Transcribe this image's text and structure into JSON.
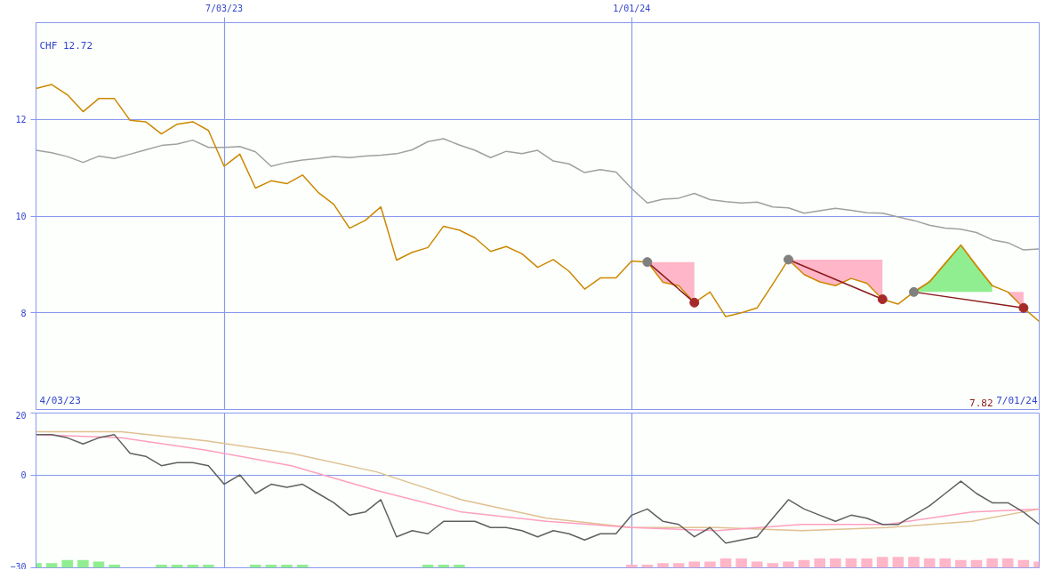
{
  "chart_data": [
    {
      "type": "line",
      "x": [
        "2023-04-10",
        "2023-04-17",
        "2023-04-24",
        "2023-05-01",
        "2023-05-08",
        "2023-05-15",
        "2023-05-22",
        "2023-05-29",
        "2023-06-05",
        "2023-06-12",
        "2023-06-19",
        "2023-06-26",
        "2023-07-03",
        "2023-07-10",
        "2023-07-17",
        "2023-07-24",
        "2023-07-31",
        "2023-08-07",
        "2023-08-14",
        "2023-08-21",
        "2023-08-28",
        "2023-09-04",
        "2023-09-11",
        "2023-09-18",
        "2023-09-25",
        "2023-10-02",
        "2023-10-09",
        "2023-10-16",
        "2023-10-23",
        "2023-10-30",
        "2023-11-06",
        "2023-11-13",
        "2023-11-20",
        "2023-11-27",
        "2023-12-04",
        "2023-12-11",
        "2023-12-18",
        "2023-12-25",
        "2024-01-01",
        "2024-01-08",
        "2024-01-15",
        "2024-01-22",
        "2024-01-29",
        "2024-02-05",
        "2024-02-12",
        "2024-02-19",
        "2024-02-26",
        "2024-03-04",
        "2024-03-11",
        "2024-03-18",
        "2024-03-25",
        "2024-04-01",
        "2024-04-08",
        "2024-04-15",
        "2024-04-22",
        "2024-04-29",
        "2024-05-06",
        "2024-05-13",
        "2024-05-20",
        "2024-05-27",
        "2024-06-03",
        "2024-06-10",
        "2024-06-17",
        "2024-06-24",
        "2024-07-01"
      ],
      "xlim": [
        "2023-04-10",
        "2024-07-01"
      ],
      "xticks": [
        {
          "value": "2023-07-03",
          "label": "7/03/23"
        },
        {
          "value": "2024-01-01",
          "label": "1/01/24"
        }
      ],
      "ylim": [
        6,
        14
      ],
      "yticks": [
        8,
        10,
        12
      ],
      "grid": true,
      "annotations": [
        "CHF 12.72",
        "4/03/23",
        "7.82",
        "7/01/24"
      ],
      "series": [
        {
          "color": "#a0a0a0",
          "values": [
            11.36,
            11.31,
            11.23,
            11.11,
            11.24,
            11.19,
            11.28,
            11.37,
            11.46,
            11.49,
            11.57,
            11.42,
            11.42,
            11.44,
            11.33,
            11.03,
            11.11,
            11.16,
            11.19,
            11.23,
            11.21,
            11.24,
            11.26,
            11.29,
            11.37,
            11.54,
            11.6,
            11.47,
            11.36,
            11.21,
            11.34,
            11.29,
            11.36,
            11.14,
            11.08,
            10.9,
            10.96,
            10.91,
            10.57,
            10.27,
            10.35,
            10.37,
            10.47,
            10.34,
            10.3,
            10.27,
            10.29,
            10.19,
            10.17,
            10.06,
            10.11,
            10.16,
            10.12,
            10.07,
            10.06,
            9.98,
            9.91,
            9.81,
            9.75,
            9.73,
            9.66,
            9.51,
            9.45,
            9.3,
            9.32
          ]
        },
        {
          "color": "#cc8800",
          "values": [
            12.64,
            12.72,
            12.51,
            12.16,
            12.43,
            12.43,
            11.98,
            11.95,
            11.7,
            11.9,
            11.95,
            11.77,
            11.03,
            11.28,
            10.58,
            10.73,
            10.67,
            10.85,
            10.49,
            10.24,
            9.75,
            9.91,
            10.19,
            9.09,
            9.25,
            9.35,
            9.79,
            9.71,
            9.55,
            9.27,
            9.37,
            9.22,
            8.94,
            9.1,
            8.86,
            8.49,
            8.72,
            8.72,
            9.07,
            9.05,
            8.63,
            8.56,
            8.21,
            8.43,
            7.92,
            8.0,
            8.1,
            8.59,
            9.1,
            8.79,
            8.64,
            8.56,
            8.71,
            8.61,
            8.28,
            8.18,
            8.43,
            8.64,
            9.02,
            9.4,
            8.97,
            8.56,
            8.43,
            8.1,
            7.82
          ],
          "lower": [
            null,
            null,
            null,
            null,
            null,
            null,
            null,
            null,
            null,
            null,
            null,
            null,
            null,
            null,
            null,
            null,
            null,
            null,
            null,
            null,
            null,
            null,
            null,
            null,
            null,
            null,
            null,
            null,
            null,
            null,
            null,
            null,
            null,
            null,
            null,
            null,
            null,
            null,
            null,
            9.05,
            8.63,
            8.56,
            8.21,
            null,
            null,
            null,
            null,
            null,
            9.1,
            8.79,
            8.64,
            8.56,
            8.71,
            8.61,
            8.28,
            null,
            null,
            null,
            null,
            null,
            null,
            null,
            8.43,
            8.1,
            null
          ],
          "upper": [
            null,
            null,
            null,
            null,
            null,
            null,
            null,
            null,
            null,
            null,
            null,
            null,
            null,
            null,
            null,
            null,
            null,
            null,
            null,
            null,
            null,
            null,
            null,
            null,
            null,
            null,
            null,
            null,
            null,
            null,
            null,
            null,
            null,
            null,
            null,
            null,
            null,
            null,
            null,
            9.05,
            9.05,
            9.05,
            9.05,
            null,
            null,
            null,
            null,
            null,
            9.1,
            9.1,
            9.1,
            9.1,
            9.1,
            9.1,
            9.1,
            null,
            null,
            null,
            null,
            null,
            null,
            null,
            8.43,
            8.43,
            null
          ],
          "colors": [
            null,
            null,
            null,
            null,
            null,
            null,
            null,
            null,
            null,
            null,
            null,
            null,
            null,
            null,
            null,
            null,
            null,
            null,
            null,
            null,
            null,
            null,
            null,
            null,
            null,
            null,
            null,
            null,
            null,
            null,
            null,
            null,
            null,
            null,
            null,
            null,
            null,
            null,
            null,
            "#ffb6c8",
            "#ffb6c8",
            "#ffb6c8",
            "#ffb6c8",
            null,
            null,
            null,
            null,
            null,
            "#ffb6c8",
            "#ffb6c8",
            "#ffb6c8",
            "#ffb6c8",
            "#ffb6c8",
            "#ffb6c8",
            "#ffb6c8",
            null,
            null,
            null,
            null,
            null,
            null,
            null,
            "#ffb6c8",
            "#ffb6c8",
            null
          ]
        },
        {
          "color": "#cc8800",
          "x": [
            "2024-05-06",
            "2024-05-13",
            "2024-05-20",
            "2024-05-27",
            "2024-06-03",
            "2024-06-10"
          ],
          "values": [
            8.43,
            8.64,
            9.02,
            9.4,
            8.97,
            8.56
          ],
          "lower": [
            8.43,
            8.43,
            8.43,
            8.43,
            8.43,
            8.43
          ],
          "upper": [
            8.43,
            8.64,
            9.02,
            9.4,
            8.97,
            8.56
          ],
          "colors": [
            "#90ee90",
            "#90ee90",
            "#90ee90",
            "#90ee90",
            "#90ee90",
            "#90ee90"
          ]
        },
        {
          "color": "#8b1a1a",
          "x": [
            "2024-01-08",
            "2024-01-29"
          ],
          "values": [
            9.05,
            8.21
          ]
        },
        {
          "color": "#8b1a1a",
          "x": [
            "2024-03-11",
            "2024-04-22"
          ],
          "values": [
            9.1,
            8.28
          ]
        },
        {
          "color": "#8b1a1a",
          "x": [
            "2024-05-06",
            "2024-06-24"
          ],
          "values": [
            8.43,
            8.1
          ]
        },
        {
          "type": "scatter",
          "color": "#808080",
          "marker": "circle",
          "x": [
            "2024-01-08",
            "2024-03-11",
            "2024-05-06"
          ],
          "values": [
            9.05,
            9.1,
            8.43
          ]
        },
        {
          "type": "scatter",
          "color": "#a52a2a",
          "marker": "circle",
          "x": [
            "2024-01-29",
            "2024-04-22",
            "2024-06-24"
          ],
          "values": [
            8.21,
            8.28,
            8.1
          ]
        }
      ]
    },
    {
      "type": "line",
      "x": [
        "2023-04-10",
        "2023-04-17",
        "2023-04-24",
        "2023-05-01",
        "2023-05-08",
        "2023-05-15",
        "2023-05-22",
        "2023-05-29",
        "2023-06-05",
        "2023-06-12",
        "2023-06-19",
        "2023-06-26",
        "2023-07-03",
        "2023-07-10",
        "2023-07-17",
        "2023-07-24",
        "2023-07-31",
        "2023-08-07",
        "2023-08-14",
        "2023-08-21",
        "2023-08-28",
        "2023-09-04",
        "2023-09-11",
        "2023-09-18",
        "2023-09-25",
        "2023-10-02",
        "2023-10-09",
        "2023-10-16",
        "2023-10-23",
        "2023-10-30",
        "2023-11-06",
        "2023-11-13",
        "2023-11-20",
        "2023-11-27",
        "2023-12-04",
        "2023-12-11",
        "2023-12-18",
        "2023-12-25",
        "2024-01-01",
        "2024-01-08",
        "2024-01-15",
        "2024-01-22",
        "2024-01-29",
        "2024-02-05",
        "2024-02-12",
        "2024-02-19",
        "2024-02-26",
        "2024-03-04",
        "2024-03-11",
        "2024-03-18",
        "2024-03-25",
        "2024-04-01",
        "2024-04-08",
        "2024-04-15",
        "2024-04-22",
        "2024-04-29",
        "2024-05-06",
        "2024-05-13",
        "2024-05-20",
        "2024-05-27",
        "2024-06-03",
        "2024-06-10",
        "2024-06-17",
        "2024-06-24",
        "2024-07-01"
      ],
      "xlim": [
        "2023-04-10",
        "2024-07-01"
      ],
      "xticks": [
        {
          "value": "2023-07-03",
          "label": null
        },
        {
          "value": "2024-01-01",
          "label": null
        }
      ],
      "ylim": [
        -30,
        20
      ],
      "yticks": [
        20,
        0,
        -30
      ],
      "grid": true,
      "tick_labels": "y",
      "series": [
        {
          "type": "bar",
          "color": "#90ee90",
          "base": [
            -30,
            -30,
            -30,
            -30,
            -30,
            -30,
            null,
            null,
            -30,
            -30,
            -30,
            -30,
            null,
            null,
            -30,
            -30,
            -30,
            -30,
            null,
            null,
            null,
            null,
            null,
            null,
            null,
            -30,
            -30,
            -30,
            null,
            null,
            null,
            null,
            null,
            null,
            null,
            null,
            null,
            null,
            null,
            null,
            null,
            null,
            null,
            null,
            null,
            null,
            null,
            null,
            null,
            null,
            null,
            null,
            null,
            null,
            null,
            null,
            null,
            null,
            null,
            null,
            null,
            null,
            null,
            null,
            null
          ],
          "values": [
            1.5,
            1.5,
            2.5,
            2.5,
            2,
            1,
            null,
            null,
            1,
            1,
            1,
            1,
            null,
            null,
            1,
            1,
            1,
            1,
            null,
            null,
            null,
            null,
            null,
            null,
            null,
            1,
            1,
            1,
            null,
            null,
            null,
            null,
            null,
            null,
            null,
            null,
            null,
            null,
            null,
            null,
            null,
            null,
            null,
            null,
            null,
            null,
            null,
            null,
            null,
            null,
            null,
            null,
            null,
            null,
            null,
            null,
            null,
            null,
            null,
            null,
            null,
            null,
            null,
            null,
            null
          ]
        },
        {
          "type": "bar",
          "color": "#ffb6c8",
          "base": [
            null,
            null,
            null,
            null,
            null,
            null,
            null,
            null,
            null,
            null,
            null,
            null,
            null,
            null,
            null,
            null,
            null,
            null,
            null,
            null,
            null,
            null,
            null,
            null,
            null,
            null,
            null,
            null,
            null,
            null,
            null,
            null,
            null,
            null,
            null,
            null,
            null,
            null,
            -30,
            -30,
            -30,
            -30,
            -30,
            -30,
            -30,
            -30,
            -30,
            -30,
            -30,
            -30,
            -30,
            -30,
            -30,
            -30,
            -30,
            -30,
            -30,
            -30,
            -30,
            -30,
            -30,
            -30,
            -30,
            -30,
            -30
          ],
          "values": [
            null,
            null,
            null,
            null,
            null,
            null,
            null,
            null,
            null,
            null,
            null,
            null,
            null,
            null,
            null,
            null,
            null,
            null,
            null,
            null,
            null,
            null,
            null,
            null,
            null,
            null,
            null,
            null,
            null,
            null,
            null,
            null,
            null,
            null,
            null,
            null,
            null,
            null,
            1,
            1,
            1.5,
            1.5,
            2,
            2,
            3,
            3,
            2,
            1.5,
            2,
            2.5,
            3,
            3,
            3,
            3,
            3.5,
            3.5,
            3.5,
            3,
            3,
            2.5,
            2.5,
            3,
            3,
            2.5,
            2
          ]
        },
        {
          "color": "#e0c090",
          "x": [
            "2023-04-10",
            "2023-05-18",
            "2023-06-25",
            "2023-08-02",
            "2023-09-09",
            "2023-10-17",
            "2023-11-24",
            "2024-01-01",
            "2024-02-08",
            "2024-03-17",
            "2024-04-24",
            "2024-06-01",
            "2024-07-01"
          ],
          "values": [
            14,
            14,
            11,
            7,
            1,
            -8,
            -14,
            -17,
            -17,
            -18,
            -17,
            -15,
            -11
          ]
        },
        {
          "color": "#ff9fbf",
          "x": [
            "2023-04-10",
            "2023-05-18",
            "2023-06-25",
            "2023-08-02",
            "2023-09-09",
            "2023-10-17",
            "2023-11-24",
            "2024-01-01",
            "2024-02-08",
            "2024-03-17",
            "2024-04-24",
            "2024-06-01",
            "2024-07-01"
          ],
          "values": [
            13,
            12,
            8,
            3,
            -5,
            -12,
            -15,
            -17,
            -18,
            -16,
            -16,
            -12,
            -11
          ]
        },
        {
          "color": "#606060",
          "values": [
            13,
            13,
            12,
            10,
            12,
            13,
            7,
            6,
            3,
            4,
            4,
            3,
            -3,
            0,
            -6,
            -3,
            -4,
            -3,
            -6,
            -9,
            -13,
            -12,
            -8,
            -20,
            -18,
            -19,
            -15,
            -15,
            -15,
            -17,
            -17,
            -18,
            -20,
            -18,
            -19,
            -21,
            -19,
            -19,
            -13,
            -11,
            -15,
            -16,
            -20,
            -17,
            -22,
            -21,
            -20,
            -14,
            -8,
            -11,
            -13,
            -15,
            -13,
            -14,
            -16,
            -16,
            -13,
            -10,
            -6,
            -2,
            -6,
            -9,
            -9,
            -12,
            -16
          ]
        }
      ]
    }
  ]
}
